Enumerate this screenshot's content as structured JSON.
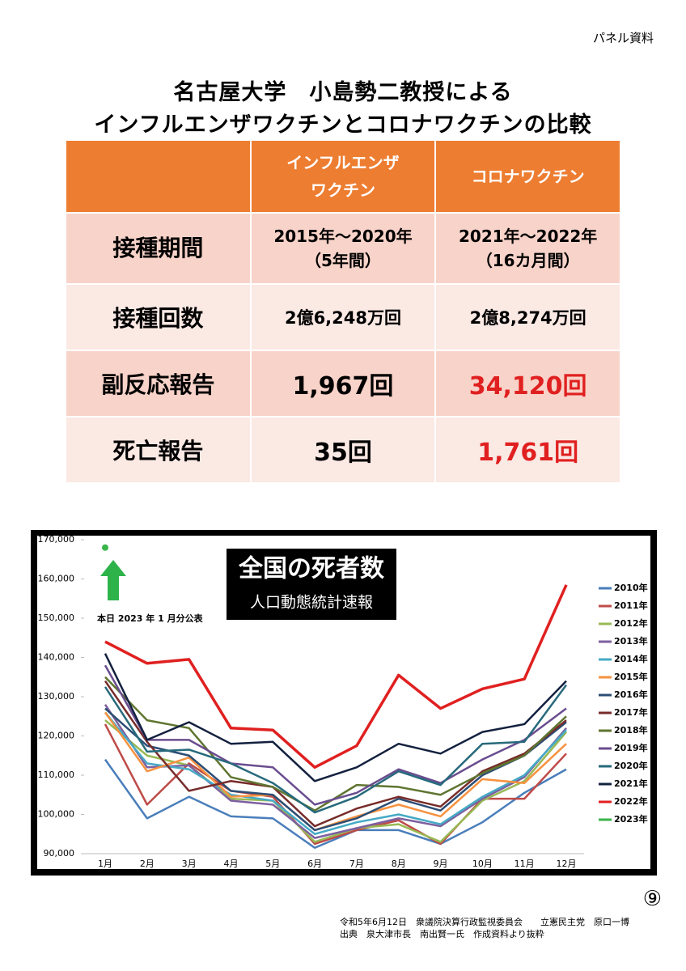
{
  "header": {
    "label": "パネル資料",
    "title": [
      "名古屋大学　小島勢二教授による",
      "インフルエンザワクチンとコロナワクチンの比較"
    ]
  },
  "table": {
    "header": [
      "インフルエンザ\nワクチン",
      "コロナワクチン"
    ],
    "rows": [
      [
        "接種期間",
        "2015年～2020年\n（5年間）",
        "2021年～2022年\n（16カ月間）"
      ],
      [
        "接種回数",
        "2億6,248万回",
        "2億8,274万回"
      ],
      [
        "副反応報告",
        "1,967回",
        "34,120回"
      ],
      [
        "死亡報告",
        "35回",
        "1,761回"
      ]
    ]
  },
  "chart_data": {
    "type": "line",
    "title": "全国の死者数",
    "subtitle": "人口動態統計速報",
    "annotation": "本日 2023 年 1 月分公表",
    "categories": [
      "1月",
      "2月",
      "3月",
      "4月",
      "5月",
      "6月",
      "7月",
      "8月",
      "9月",
      "10月",
      "11月",
      "12月"
    ],
    "ylim": [
      90000,
      170000
    ],
    "yticks": [
      {
        "value": 90000,
        "label": "90,000"
      },
      {
        "value": 100000,
        "label": "100,000"
      },
      {
        "value": 110000,
        "label": "110,000"
      },
      {
        "value": 120000,
        "label": "120,000"
      },
      {
        "value": 130000,
        "label": "130,000"
      },
      {
        "value": 140000,
        "label": "140,000"
      },
      {
        "value": 150000,
        "label": "150,000"
      },
      {
        "value": 160000,
        "label": "160,000"
      },
      {
        "value": 170000,
        "label": "170,000"
      }
    ],
    "series": [
      {
        "name": "2010年",
        "color": "#4a7ebb",
        "values": [
          114000,
          99000,
          104500,
          99500,
          99000,
          91500,
          96000,
          96000,
          92500,
          98000,
          105500,
          111500
        ]
      },
      {
        "name": "2011年",
        "color": "#be4b48",
        "values": [
          123000,
          102500,
          113000,
          106000,
          104500,
          92500,
          96000,
          98500,
          92500,
          104000,
          104000,
          115500
        ]
      },
      {
        "name": "2012年",
        "color": "#98b954",
        "values": [
          124000,
          115000,
          112500,
          104000,
          103500,
          93000,
          96500,
          97500,
          93000,
          103500,
          108500,
          121000
        ]
      },
      {
        "name": "2013年",
        "color": "#7d60a0",
        "values": [
          128000,
          112000,
          112500,
          103500,
          102500,
          94000,
          96500,
          99000,
          97000,
          104000,
          109500,
          122000
        ]
      },
      {
        "name": "2014年",
        "color": "#46aac5",
        "values": [
          126000,
          113000,
          111500,
          105000,
          103500,
          95000,
          98000,
          100000,
          97500,
          104500,
          110000,
          121500
        ]
      },
      {
        "name": "2015年",
        "color": "#f69240",
        "values": [
          126000,
          111000,
          114500,
          104500,
          105000,
          96000,
          99500,
          102500,
          99500,
          109000,
          108000,
          118000
        ]
      },
      {
        "name": "2016年",
        "color": "#2c4d75",
        "values": [
          127000,
          117500,
          115000,
          106000,
          105000,
          96000,
          99000,
          104000,
          101000,
          110000,
          115000,
          123500
        ]
      },
      {
        "name": "2017年",
        "color": "#772c2a",
        "values": [
          134000,
          118500,
          106000,
          108500,
          107000,
          97000,
          101500,
          104500,
          102000,
          111000,
          115500,
          124000
        ]
      },
      {
        "name": "2018年",
        "color": "#5f7530",
        "values": [
          135000,
          124000,
          122000,
          109500,
          107000,
          101000,
          107500,
          107000,
          105000,
          110500,
          115000,
          125000
        ]
      },
      {
        "name": "2019年",
        "color": "#6a4d8f",
        "values": [
          138000,
          119000,
          119000,
          113000,
          112000,
          102500,
          105500,
          111500,
          108000,
          114000,
          119000,
          127000
        ]
      },
      {
        "name": "2020年",
        "color": "#276a7c",
        "values": [
          132500,
          116000,
          116500,
          113000,
          108000,
          100500,
          104500,
          111000,
          107500,
          118000,
          118500,
          133000
        ]
      },
      {
        "name": "2021年",
        "color": "#13213f",
        "values": [
          141000,
          119000,
          123500,
          118000,
          118500,
          108500,
          112000,
          118000,
          115500,
          121000,
          123000,
          134000
        ]
      },
      {
        "name": "2022年",
        "color": "#e02020",
        "values": [
          144000,
          138500,
          139500,
          122000,
          121500,
          112000,
          117500,
          135500,
          127000,
          132000,
          134500,
          158500
        ]
      },
      {
        "name": "2023年",
        "color": "#3ab54a",
        "values": [
          168000,
          null,
          null,
          null,
          null,
          null,
          null,
          null,
          null,
          null,
          null,
          null
        ]
      }
    ]
  },
  "footer": {
    "page": "⑨",
    "lines": [
      "令和5年6月12日　衆議院決算行政監視委員会　　立憲民主党　原口一博",
      "出典　泉大津市長　南出賢一氏　作成資料より抜粋"
    ]
  }
}
